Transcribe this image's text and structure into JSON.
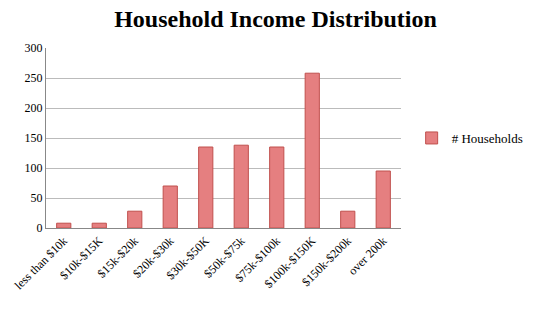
{
  "chart_data": {
    "type": "bar",
    "title": "Household Income Distribution",
    "categories": [
      "less than $10k",
      "$10k-$15K",
      "$15k-$20k",
      "$20k-$30k",
      "$30k-$50K",
      "$50k-$75k",
      "$75k-$100k",
      "$100k-$150K",
      "$150k-$200k",
      "over 200k"
    ],
    "series": [
      {
        "name": "# Households",
        "color": "#e57f80",
        "values": [
          8,
          8,
          28,
          70,
          135,
          138,
          135,
          258,
          28,
          95
        ]
      }
    ],
    "ylim": [
      0,
      300
    ],
    "yticks": [
      0,
      50,
      100,
      150,
      200,
      250,
      300
    ],
    "grid": true,
    "legend": "right"
  }
}
